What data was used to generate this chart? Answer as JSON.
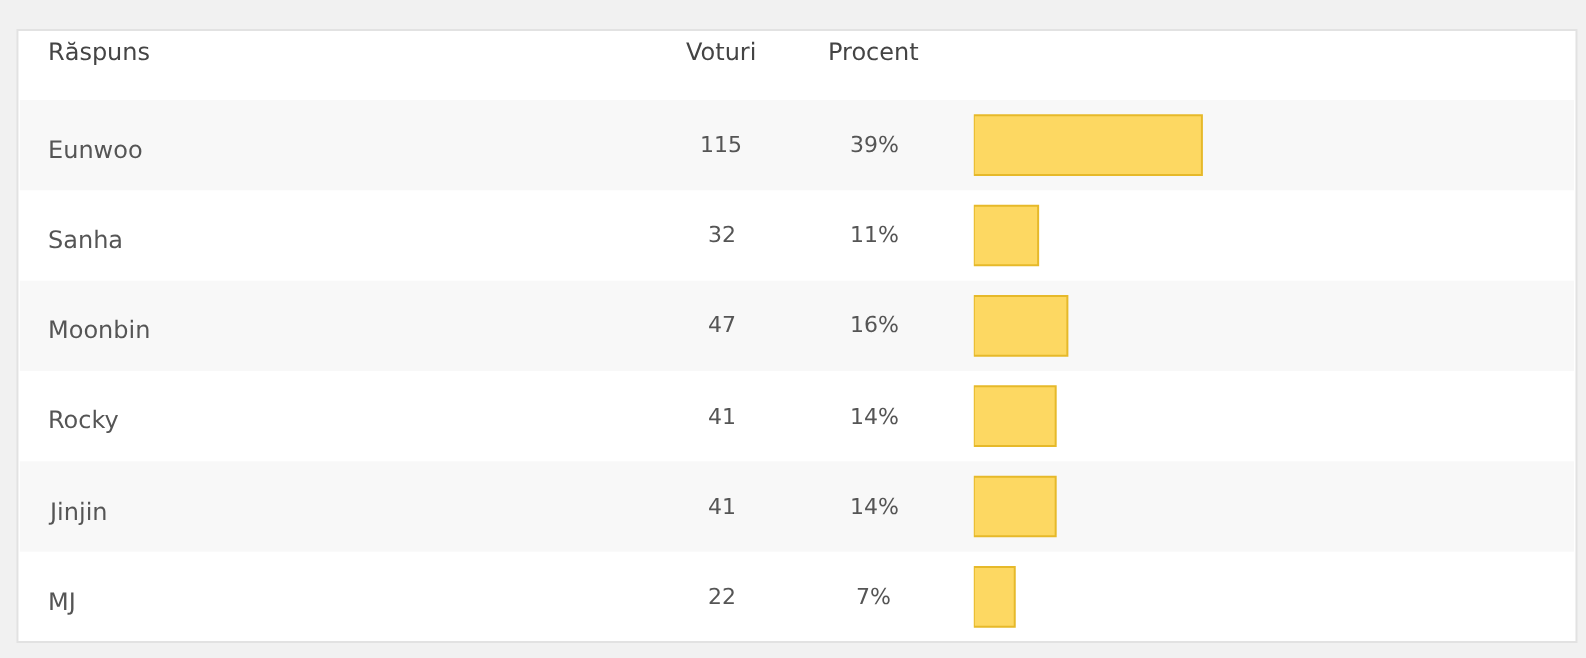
{
  "chart_data": {
    "type": "bar",
    "orientation": "horizontal",
    "categories": [
      "Eunwoo",
      "Sanha",
      "Moonbin",
      "Rocky",
      "Jinjin",
      "MJ"
    ],
    "values": [
      39,
      11,
      16,
      14,
      14,
      7
    ],
    "value_labels": [
      "39%",
      "11%",
      "16%",
      "14%",
      "14%",
      "7%"
    ],
    "color": "#fdd862",
    "tick_labels": false,
    "annotations": [
      "Răspuns",
      "Voturi",
      "Procent",
      "115",
      "32",
      "47",
      "41",
      "41",
      "22"
    ]
  }
}
